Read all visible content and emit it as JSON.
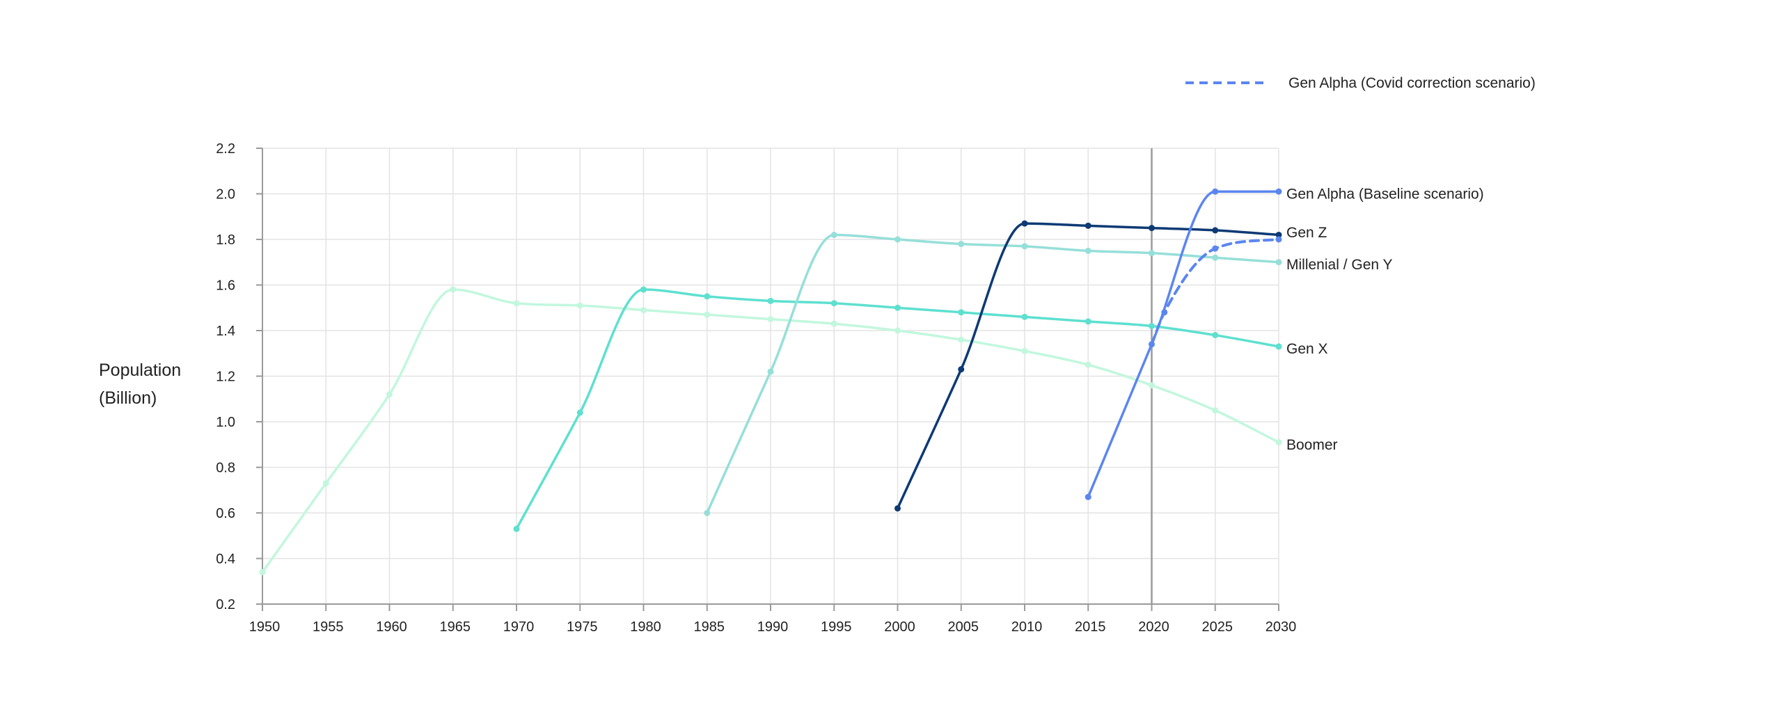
{
  "chart_data": {
    "type": "line",
    "title": "",
    "xlabel": "",
    "ylabel": [
      "Population",
      "(Billion)"
    ],
    "xlim": [
      1950,
      2030
    ],
    "ylim": [
      0.2,
      2.2
    ],
    "x_ticks": [
      1950,
      1955,
      1960,
      1965,
      1970,
      1975,
      1980,
      1985,
      1990,
      1995,
      2000,
      2005,
      2010,
      2015,
      2020,
      2025,
      2030
    ],
    "y_ticks": [
      0.2,
      0.4,
      0.6,
      0.8,
      1.0,
      1.2,
      1.4,
      1.6,
      1.8,
      2.0,
      2.2
    ],
    "y_tick_labels": [
      "0.2",
      "0.4",
      "0.6",
      "0.8",
      "1.0",
      "1.2",
      "1.4",
      "1.6",
      "1.8",
      "2.0",
      "2.2"
    ],
    "grid": true,
    "reference_line_x": 2020,
    "legend": {
      "position": "top-right",
      "entries": [
        {
          "label": "Gen Alpha (Covid correction scenario)",
          "color": "#5b86f0",
          "style": "dashed"
        }
      ]
    },
    "series": [
      {
        "name": "Boomer",
        "color": "#c2f7de",
        "style": "solid",
        "points": [
          [
            1950,
            0.34
          ],
          [
            1955,
            0.73
          ],
          [
            1960,
            1.12
          ],
          [
            1965,
            1.58
          ],
          [
            1970,
            1.52
          ],
          [
            1975,
            1.51
          ],
          [
            1980,
            1.49
          ],
          [
            1985,
            1.47
          ],
          [
            1990,
            1.45
          ],
          [
            1995,
            1.43
          ],
          [
            2000,
            1.4
          ],
          [
            2005,
            1.36
          ],
          [
            2010,
            1.31
          ],
          [
            2015,
            1.25
          ],
          [
            2020,
            1.16
          ],
          [
            2025,
            1.05
          ],
          [
            2030,
            0.91
          ]
        ]
      },
      {
        "name": "Gen X",
        "color": "#5ee0cf",
        "style": "solid",
        "points": [
          [
            1970,
            0.53
          ],
          [
            1975,
            1.04
          ],
          [
            1980,
            1.58
          ],
          [
            1985,
            1.55
          ],
          [
            1990,
            1.53
          ],
          [
            1995,
            1.52
          ],
          [
            2000,
            1.5
          ],
          [
            2005,
            1.48
          ],
          [
            2010,
            1.46
          ],
          [
            2015,
            1.44
          ],
          [
            2020,
            1.42
          ],
          [
            2025,
            1.38
          ],
          [
            2030,
            1.33
          ]
        ]
      },
      {
        "name": "Millenial / Gen Y",
        "color": "#96dfd9",
        "style": "solid",
        "points": [
          [
            1985,
            0.6
          ],
          [
            1990,
            1.22
          ],
          [
            1995,
            1.82
          ],
          [
            2000,
            1.8
          ],
          [
            2005,
            1.78
          ],
          [
            2010,
            1.77
          ],
          [
            2015,
            1.75
          ],
          [
            2020,
            1.74
          ],
          [
            2025,
            1.72
          ],
          [
            2030,
            1.7
          ]
        ]
      },
      {
        "name": "Gen Z",
        "color": "#0d3a74",
        "style": "solid",
        "points": [
          [
            2000,
            0.62
          ],
          [
            2005,
            1.23
          ],
          [
            2010,
            1.87
          ],
          [
            2015,
            1.86
          ],
          [
            2020,
            1.85
          ],
          [
            2025,
            1.84
          ],
          [
            2030,
            1.82
          ]
        ]
      },
      {
        "name": "Gen Alpha (Baseline scenario)",
        "color": "#5b86f0",
        "style": "solid",
        "points": [
          [
            2015,
            0.67
          ],
          [
            2020,
            1.34
          ],
          [
            2025,
            2.01
          ],
          [
            2030,
            2.01
          ]
        ]
      },
      {
        "name": "Gen Alpha (Covid correction scenario)",
        "color": "#5b86f0",
        "style": "dashed",
        "points": [
          [
            2020,
            1.34
          ],
          [
            2021,
            1.48
          ],
          [
            2025,
            1.76
          ],
          [
            2030,
            1.8
          ]
        ]
      }
    ],
    "end_labels": [
      {
        "series": "Gen Alpha (Baseline scenario)",
        "text": "Gen Alpha (Baseline scenario)",
        "y": 2.0
      },
      {
        "series": "Gen Z",
        "text": "Gen Z",
        "y": 1.83
      },
      {
        "series": "Millenial / Gen Y",
        "text": "Millenial / Gen Y",
        "y": 1.69
      },
      {
        "series": "Gen X",
        "text": "Gen X",
        "y": 1.32
      },
      {
        "series": "Boomer",
        "text": "Boomer",
        "y": 0.9
      }
    ]
  }
}
